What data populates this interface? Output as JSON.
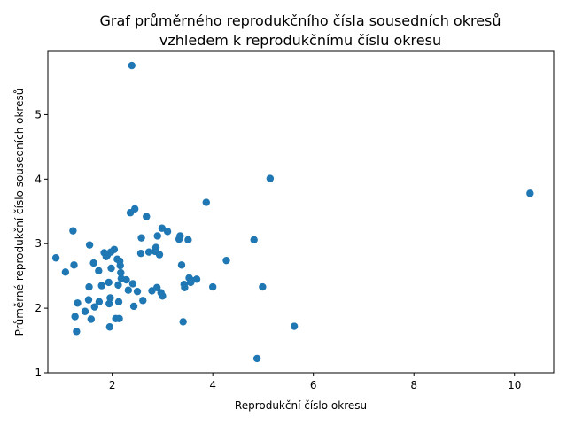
{
  "chart_data": {
    "type": "scatter",
    "title_lines": [
      "Graf průměrného reprodukčního čísla sousedních okresů",
      "vzhledem k reprodukčnímu číslu okresu"
    ],
    "xlabel": "Reprodukční číslo okresu",
    "ylabel": "Průměrné reprodukční číslo sousedních okresů",
    "xlim": [
      0.72,
      10.78
    ],
    "ylim": [
      1.0,
      5.98
    ],
    "xticks": [
      2,
      4,
      6,
      8,
      10
    ],
    "yticks": [
      1,
      2,
      3,
      4,
      5
    ],
    "grid": false,
    "colors": {
      "marker": "#1f77b4"
    },
    "points": [
      [
        0.88,
        2.78
      ],
      [
        1.07,
        2.56
      ],
      [
        1.22,
        3.2
      ],
      [
        1.24,
        2.67
      ],
      [
        1.26,
        1.87
      ],
      [
        1.29,
        1.64
      ],
      [
        1.31,
        2.08
      ],
      [
        1.46,
        1.95
      ],
      [
        1.53,
        2.13
      ],
      [
        1.54,
        2.33
      ],
      [
        1.55,
        2.98
      ],
      [
        1.58,
        1.83
      ],
      [
        1.63,
        2.7
      ],
      [
        1.65,
        2.02
      ],
      [
        1.73,
        2.58
      ],
      [
        1.74,
        2.1
      ],
      [
        1.79,
        2.35
      ],
      [
        1.84,
        2.86
      ],
      [
        1.88,
        2.8
      ],
      [
        1.9,
        2.82
      ],
      [
        1.93,
        2.4
      ],
      [
        1.94,
        2.07
      ],
      [
        1.95,
        1.71
      ],
      [
        1.96,
        2.16
      ],
      [
        1.97,
        2.87
      ],
      [
        1.98,
        2.62
      ],
      [
        2.04,
        2.91
      ],
      [
        2.07,
        1.84
      ],
      [
        2.1,
        2.76
      ],
      [
        2.12,
        2.36
      ],
      [
        2.13,
        2.1
      ],
      [
        2.14,
        1.84
      ],
      [
        2.15,
        2.73
      ],
      [
        2.16,
        2.66
      ],
      [
        2.17,
        2.55
      ],
      [
        2.18,
        2.46
      ],
      [
        2.28,
        2.44
      ],
      [
        2.32,
        2.28
      ],
      [
        2.36,
        3.48
      ],
      [
        2.39,
        5.76
      ],
      [
        2.41,
        2.38
      ],
      [
        2.43,
        2.03
      ],
      [
        2.45,
        3.54
      ],
      [
        2.5,
        2.26
      ],
      [
        2.57,
        2.85
      ],
      [
        2.58,
        3.09
      ],
      [
        2.61,
        2.12
      ],
      [
        2.68,
        3.42
      ],
      [
        2.73,
        2.87
      ],
      [
        2.79,
        2.27
      ],
      [
        2.85,
        2.88
      ],
      [
        2.87,
        2.94
      ],
      [
        2.89,
        2.32
      ],
      [
        2.9,
        3.12
      ],
      [
        2.94,
        2.83
      ],
      [
        2.97,
        2.24
      ],
      [
        2.99,
        3.24
      ],
      [
        3.0,
        2.19
      ],
      [
        3.1,
        3.19
      ],
      [
        3.33,
        3.07
      ],
      [
        3.35,
        3.12
      ],
      [
        3.38,
        2.67
      ],
      [
        3.41,
        1.79
      ],
      [
        3.43,
        2.37
      ],
      [
        3.44,
        2.32
      ],
      [
        3.51,
        3.06
      ],
      [
        3.53,
        2.47
      ],
      [
        3.56,
        2.4
      ],
      [
        3.58,
        2.43
      ],
      [
        3.68,
        2.45
      ],
      [
        3.87,
        3.64
      ],
      [
        4.0,
        2.33
      ],
      [
        4.27,
        2.74
      ],
      [
        4.82,
        3.06
      ],
      [
        4.88,
        1.22
      ],
      [
        4.99,
        2.33
      ],
      [
        5.14,
        4.01
      ],
      [
        5.62,
        1.72
      ],
      [
        10.31,
        3.78
      ]
    ]
  }
}
